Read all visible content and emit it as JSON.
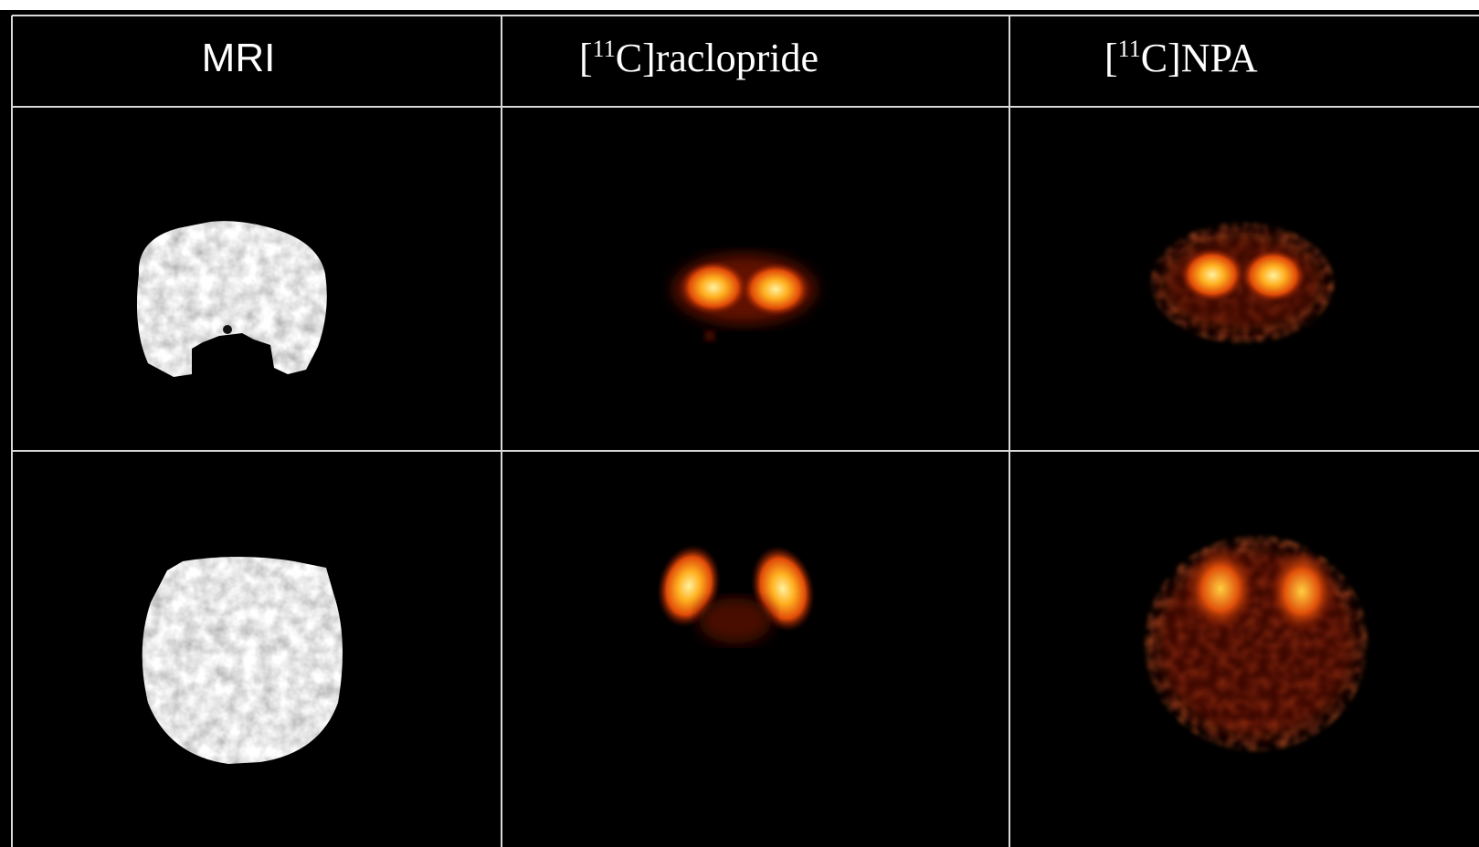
{
  "figure": {
    "columns": [
      {
        "label": "MRI"
      },
      {
        "prefix": "[",
        "superscript": "11",
        "suffix": "C]raclopride"
      },
      {
        "prefix": "[",
        "superscript": "11",
        "suffix": "C]NPA"
      }
    ]
  }
}
